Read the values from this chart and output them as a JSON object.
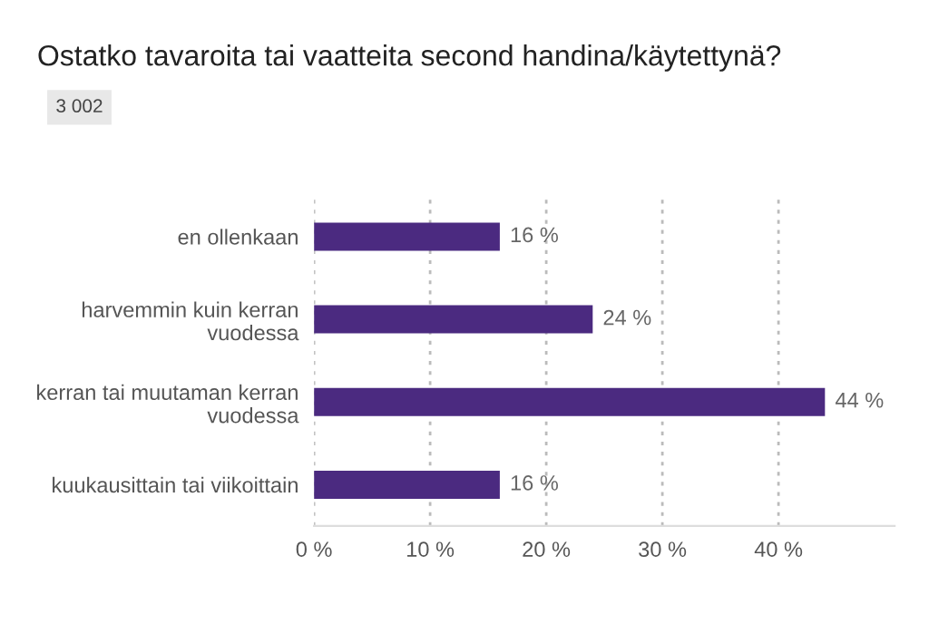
{
  "chart_data": {
    "type": "bar",
    "orientation": "horizontal",
    "title": "Ostatko tavaroita tai vaatteita second handina/käytettynä?",
    "subtitle": "3 002",
    "categories": [
      "en ollenkaan",
      "harvemmin kuin kerran\nvuodessa",
      "kerran tai muutaman kerran\nvuodessa",
      "kuukausittain tai viikoittain"
    ],
    "values": [
      16,
      24,
      44,
      16
    ],
    "color": "#4b2a80",
    "value_labels": [
      "16 %",
      "24 %",
      "44 %",
      "16 %"
    ],
    "xlim": [
      0,
      50
    ],
    "xticks": [
      {
        "value": 0,
        "label": "0 %"
      },
      {
        "value": 10,
        "label": "10 %"
      },
      {
        "value": 20,
        "label": "20 %"
      },
      {
        "value": 30,
        "label": "30 %"
      },
      {
        "value": 40,
        "label": "40 %"
      }
    ],
    "grid": "x"
  }
}
